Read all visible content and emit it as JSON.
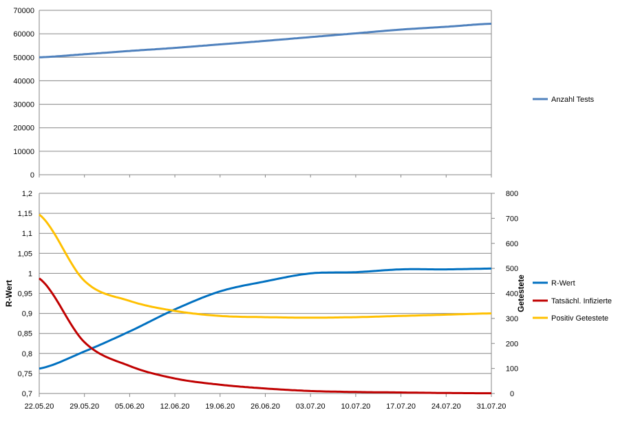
{
  "chart_data": [
    {
      "type": "line",
      "ylim": [
        0,
        70000
      ],
      "yticks": [
        "0",
        "10000",
        "20000",
        "30000",
        "40000",
        "50000",
        "60000",
        "70000"
      ],
      "grid": true,
      "legend_position": "right",
      "x": [
        "22.05.20",
        "29.05.20",
        "05.06.20",
        "12.06.20",
        "19.06.20",
        "26.06.20",
        "03.07.20",
        "10.07.20",
        "17.07.20",
        "24.07.20",
        "31.07.20"
      ],
      "series": [
        {
          "name": "Anzahl Tests",
          "color": "#4F81BD",
          "values": [
            50000,
            51300,
            52700,
            54000,
            55500,
            57000,
            58600,
            60200,
            61800,
            63000,
            64300
          ]
        }
      ]
    },
    {
      "type": "line",
      "ylabel": "R-Wert",
      "y2label": "Getestete",
      "ylim": [
        0.7,
        1.2
      ],
      "y2lim": [
        0,
        800
      ],
      "yticks": [
        "0,7",
        "0,75",
        "0,8",
        "0,85",
        "0,9",
        "0,95",
        "1",
        "1,05",
        "1,1",
        "1,15",
        "1,2"
      ],
      "y2ticks": [
        "0",
        "100",
        "200",
        "300",
        "400",
        "500",
        "600",
        "700",
        "800"
      ],
      "grid": true,
      "legend_position": "right",
      "x": [
        "22.05.20",
        "29.05.20",
        "05.06.20",
        "12.06.20",
        "19.06.20",
        "26.06.20",
        "03.07.20",
        "10.07.20",
        "17.07.20",
        "24.07.20",
        "31.07.20"
      ],
      "series": [
        {
          "name": "R-Wert",
          "axis": "left",
          "color": "#0070C0",
          "values": [
            0.762,
            0.805,
            0.855,
            0.91,
            0.955,
            0.98,
            1.0,
            1.003,
            1.01,
            1.01,
            1.012
          ]
        },
        {
          "name": "Tatsächl. Infizierte",
          "axis": "right",
          "color": "#C00000",
          "values": [
            460,
            205,
            110,
            60,
            35,
            20,
            10,
            6,
            4,
            2,
            1
          ]
        },
        {
          "name": "Positiv Getestete",
          "axis": "right",
          "color": "#FFC000",
          "values": [
            715,
            450,
            370,
            330,
            310,
            305,
            303,
            305,
            310,
            315,
            320
          ]
        }
      ]
    }
  ]
}
